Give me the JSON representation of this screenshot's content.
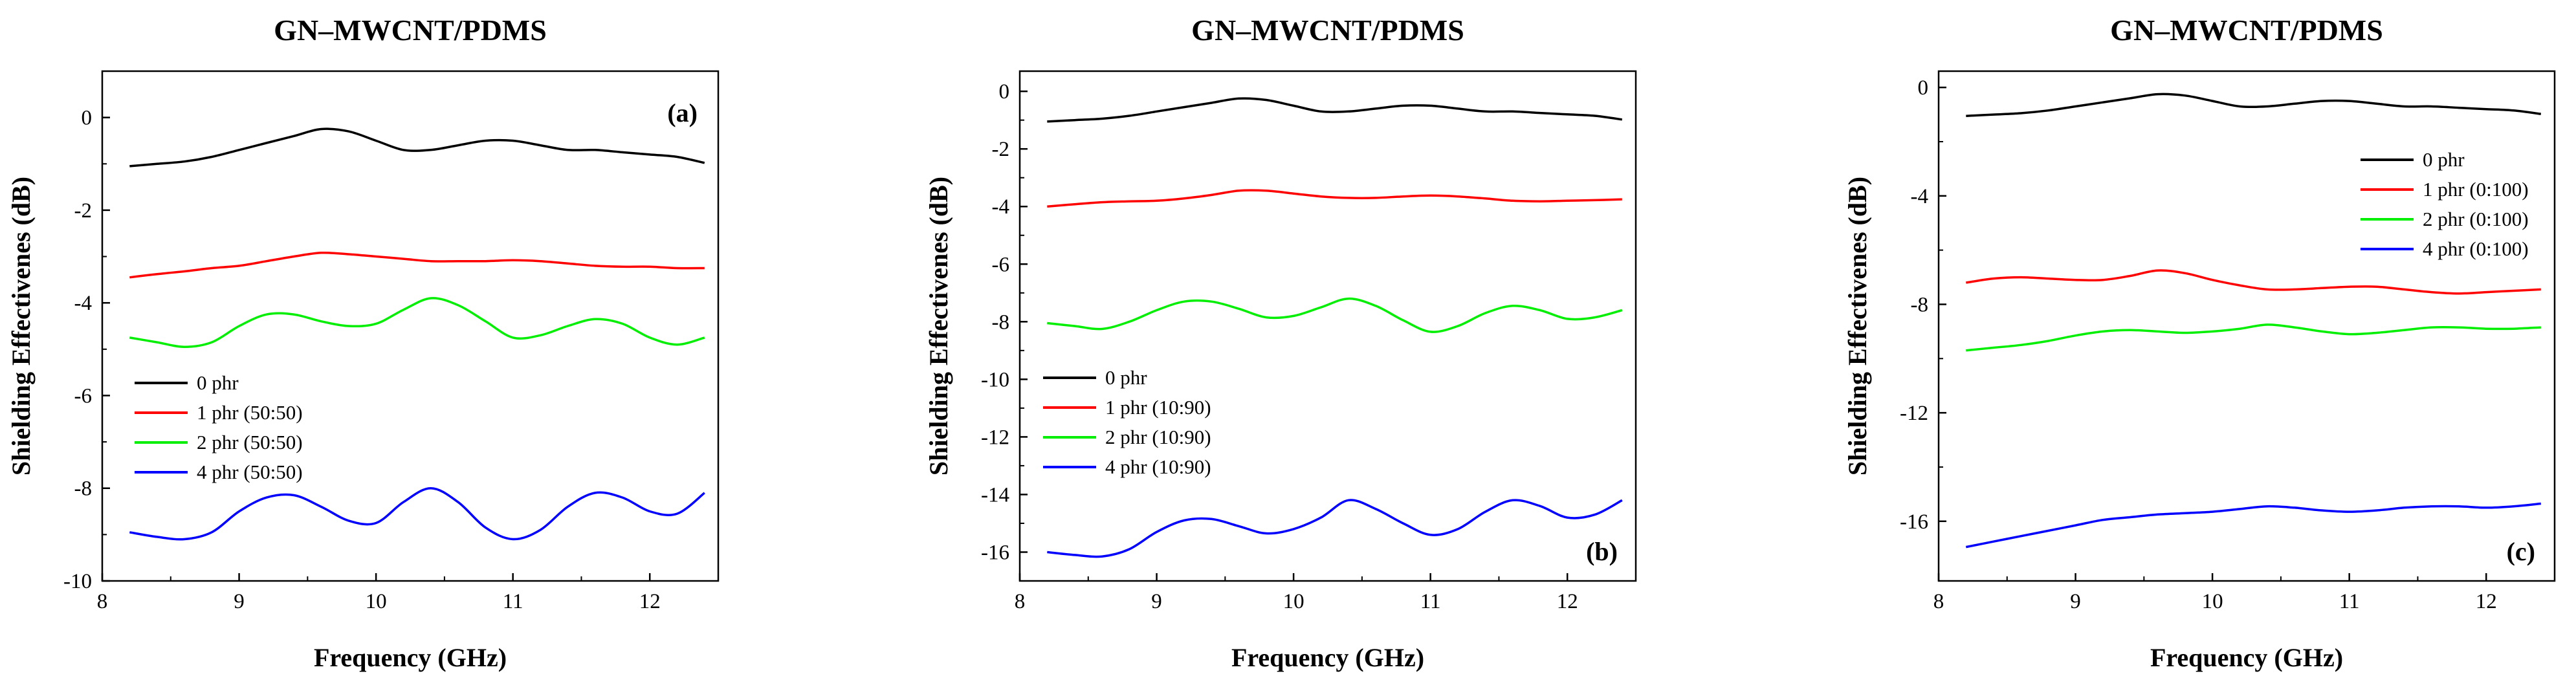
{
  "chart_data": [
    {
      "type": "line",
      "title": "GN–MWCNT/PDMS",
      "panel_label": "(a)",
      "xlabel": "Frequency (GHz)",
      "ylabel": "Shielding Effectivenes (dB)",
      "xlim": [
        8,
        12.5
      ],
      "ylim": [
        -10,
        1
      ],
      "xticks": [
        8,
        9,
        10,
        11,
        12
      ],
      "yticks": [
        0,
        -2,
        -4,
        -6,
        -8,
        -10
      ],
      "legend_position": "lower-left",
      "x": [
        8.2,
        8.4,
        8.6,
        8.8,
        9.0,
        9.2,
        9.4,
        9.6,
        9.8,
        10.0,
        10.2,
        10.4,
        10.6,
        10.8,
        11.0,
        11.2,
        11.4,
        11.6,
        11.8,
        12.0,
        12.2,
        12.4
      ],
      "series": [
        {
          "name": "0 phr",
          "color": "#000000",
          "values": [
            -1.05,
            -1.0,
            -0.95,
            -0.85,
            -0.7,
            -0.55,
            -0.4,
            -0.25,
            -0.3,
            -0.5,
            -0.7,
            -0.7,
            -0.6,
            -0.5,
            -0.5,
            -0.6,
            -0.7,
            -0.7,
            -0.75,
            -0.8,
            -0.85,
            -0.98
          ]
        },
        {
          "name": "1 phr (50:50)",
          "color": "#ff0000",
          "values": [
            -3.45,
            -3.38,
            -3.32,
            -3.25,
            -3.2,
            -3.1,
            -3.0,
            -2.92,
            -2.95,
            -3.0,
            -3.05,
            -3.1,
            -3.1,
            -3.1,
            -3.08,
            -3.1,
            -3.15,
            -3.2,
            -3.22,
            -3.22,
            -3.25,
            -3.25
          ]
        },
        {
          "name": "2 phr (50:50)",
          "color": "#00ee00",
          "values": [
            -4.75,
            -4.85,
            -4.95,
            -4.85,
            -4.5,
            -4.25,
            -4.25,
            -4.4,
            -4.5,
            -4.45,
            -4.15,
            -3.9,
            -4.05,
            -4.4,
            -4.75,
            -4.7,
            -4.5,
            -4.35,
            -4.45,
            -4.75,
            -4.9,
            -4.75
          ]
        },
        {
          "name": "4 phr (50:50)",
          "color": "#0000ff",
          "values": [
            -8.95,
            -9.05,
            -9.1,
            -8.95,
            -8.5,
            -8.2,
            -8.15,
            -8.4,
            -8.7,
            -8.75,
            -8.3,
            -8.0,
            -8.3,
            -8.85,
            -9.1,
            -8.9,
            -8.4,
            -8.1,
            -8.2,
            -8.5,
            -8.55,
            -8.1
          ]
        }
      ]
    },
    {
      "type": "line",
      "title": "GN–MWCNT/PDMS",
      "panel_label": "(b)",
      "xlabel": "Frequency (GHz)",
      "ylabel": "Shielding Effectivenes (dB)",
      "xlim": [
        8,
        12.5
      ],
      "ylim": [
        -17,
        0.7
      ],
      "xticks": [
        8,
        9,
        10,
        11,
        12
      ],
      "yticks": [
        0,
        -2,
        -4,
        -6,
        -8,
        -10,
        -12,
        -14,
        -16
      ],
      "legend_position": "center-left",
      "x": [
        8.2,
        8.4,
        8.6,
        8.8,
        9.0,
        9.2,
        9.4,
        9.6,
        9.8,
        10.0,
        10.2,
        10.4,
        10.6,
        10.8,
        11.0,
        11.2,
        11.4,
        11.6,
        11.8,
        12.0,
        12.2,
        12.4
      ],
      "series": [
        {
          "name": "0 phr",
          "color": "#000000",
          "values": [
            -1.05,
            -1.0,
            -0.95,
            -0.85,
            -0.7,
            -0.55,
            -0.4,
            -0.25,
            -0.3,
            -0.5,
            -0.7,
            -0.7,
            -0.6,
            -0.5,
            -0.5,
            -0.6,
            -0.7,
            -0.7,
            -0.75,
            -0.8,
            -0.85,
            -0.98
          ]
        },
        {
          "name": "1 phr (10:90)",
          "color": "#ff0000",
          "values": [
            -4.0,
            -3.92,
            -3.85,
            -3.82,
            -3.8,
            -3.72,
            -3.6,
            -3.45,
            -3.45,
            -3.55,
            -3.65,
            -3.7,
            -3.7,
            -3.65,
            -3.62,
            -3.65,
            -3.72,
            -3.8,
            -3.82,
            -3.8,
            -3.78,
            -3.75
          ]
        },
        {
          "name": "2 phr (10:90)",
          "color": "#00ee00",
          "values": [
            -8.05,
            -8.15,
            -8.25,
            -8.0,
            -7.6,
            -7.3,
            -7.3,
            -7.55,
            -7.85,
            -7.8,
            -7.5,
            -7.2,
            -7.45,
            -7.95,
            -8.35,
            -8.15,
            -7.7,
            -7.45,
            -7.6,
            -7.9,
            -7.85,
            -7.6
          ]
        },
        {
          "name": "4 phr (10:90)",
          "color": "#0000ff",
          "values": [
            -16.0,
            -16.1,
            -16.15,
            -15.9,
            -15.3,
            -14.9,
            -14.85,
            -15.1,
            -15.35,
            -15.2,
            -14.8,
            -14.2,
            -14.5,
            -15.0,
            -15.4,
            -15.2,
            -14.6,
            -14.2,
            -14.4,
            -14.8,
            -14.7,
            -14.2
          ]
        }
      ]
    },
    {
      "type": "line",
      "title": "GN–MWCNT/PDMS",
      "panel_label": "(c)",
      "xlabel": "Frequency (GHz)",
      "ylabel": "Shielding Effectivenes (dB)",
      "xlim": [
        8,
        12.5
      ],
      "ylim": [
        -18.2,
        0.6
      ],
      "xticks": [
        8,
        9,
        10,
        11,
        12
      ],
      "yticks": [
        0,
        -4,
        -8,
        -12,
        -16
      ],
      "legend_position": "top-right",
      "x": [
        8.2,
        8.4,
        8.6,
        8.8,
        9.0,
        9.2,
        9.4,
        9.6,
        9.8,
        10.0,
        10.2,
        10.4,
        10.6,
        10.8,
        11.0,
        11.2,
        11.4,
        11.6,
        11.8,
        12.0,
        12.2,
        12.4
      ],
      "series": [
        {
          "name": "0 phr",
          "color": "#000000",
          "values": [
            -1.05,
            -1.0,
            -0.95,
            -0.85,
            -0.7,
            -0.55,
            -0.4,
            -0.25,
            -0.3,
            -0.5,
            -0.7,
            -0.7,
            -0.6,
            -0.5,
            -0.5,
            -0.6,
            -0.7,
            -0.7,
            -0.75,
            -0.8,
            -0.85,
            -0.98
          ]
        },
        {
          "name": "1 phr (0:100)",
          "color": "#ff0000",
          "values": [
            -7.2,
            -7.05,
            -7.0,
            -7.05,
            -7.1,
            -7.1,
            -6.95,
            -6.75,
            -6.85,
            -7.1,
            -7.3,
            -7.45,
            -7.45,
            -7.4,
            -7.35,
            -7.35,
            -7.45,
            -7.55,
            -7.6,
            -7.55,
            -7.5,
            -7.45
          ]
        },
        {
          "name": "2 phr (0:100)",
          "color": "#00ee00",
          "values": [
            -9.7,
            -9.6,
            -9.5,
            -9.35,
            -9.15,
            -9.0,
            -8.95,
            -9.0,
            -9.05,
            -9.0,
            -8.9,
            -8.75,
            -8.85,
            -9.0,
            -9.1,
            -9.05,
            -8.95,
            -8.85,
            -8.85,
            -8.9,
            -8.9,
            -8.85
          ]
        },
        {
          "name": "4 phr (0:100)",
          "color": "#0000ff",
          "values": [
            -16.95,
            -16.75,
            -16.55,
            -16.35,
            -16.15,
            -15.95,
            -15.85,
            -15.75,
            -15.7,
            -15.65,
            -15.55,
            -15.45,
            -15.5,
            -15.6,
            -15.65,
            -15.6,
            -15.5,
            -15.45,
            -15.45,
            -15.5,
            -15.45,
            -15.35
          ]
        }
      ]
    }
  ]
}
